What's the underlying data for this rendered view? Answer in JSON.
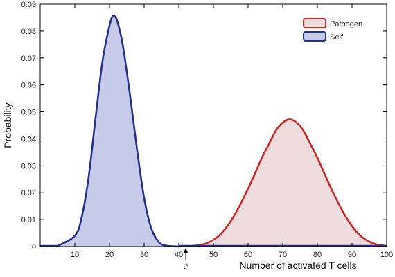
{
  "chart_data": {
    "type": "area",
    "xlabel": "Number of activated T cells",
    "ylabel": "Probability",
    "xlim": [
      0,
      100
    ],
    "ylim": [
      0,
      0.09
    ],
    "x_ticks": [
      "10",
      "20",
      "30",
      "40",
      "50",
      "60",
      "70",
      "80",
      "90",
      "100"
    ],
    "y_ticks": [
      "0",
      "0.01",
      "0.02",
      "0.03",
      "0.04",
      "0.05",
      "0.06",
      "0.07",
      "0.08",
      "0.09"
    ],
    "grid": false,
    "legend_position": "top-right",
    "series": [
      {
        "name": "Pathogen",
        "stroke": "#c82828",
        "fill": "#efdcdc",
        "x": [
          44,
          48,
          52,
          56,
          60,
          64,
          66,
          68,
          70,
          72,
          74,
          76,
          78,
          80,
          84,
          88,
          92,
          96,
          100
        ],
        "y": [
          0.0002,
          0.0012,
          0.0045,
          0.0115,
          0.0215,
          0.033,
          0.038,
          0.043,
          0.046,
          0.0472,
          0.046,
          0.043,
          0.038,
          0.033,
          0.0215,
          0.0115,
          0.0045,
          0.0012,
          0.0002
        ]
      },
      {
        "name": "Self",
        "stroke": "#24308a",
        "fill": "#c6cbe9",
        "x": [
          5,
          10,
          12,
          14,
          16,
          18,
          20,
          21,
          22,
          23,
          24,
          26,
          28,
          30,
          32,
          34,
          36,
          40
        ],
        "y": [
          0.0002,
          0.004,
          0.011,
          0.026,
          0.048,
          0.069,
          0.082,
          0.0856,
          0.0845,
          0.08,
          0.0735,
          0.0555,
          0.0355,
          0.018,
          0.007,
          0.002,
          0.0004,
          0.0
        ]
      }
    ],
    "annotation": {
      "label": "t*",
      "x": 42
    }
  }
}
